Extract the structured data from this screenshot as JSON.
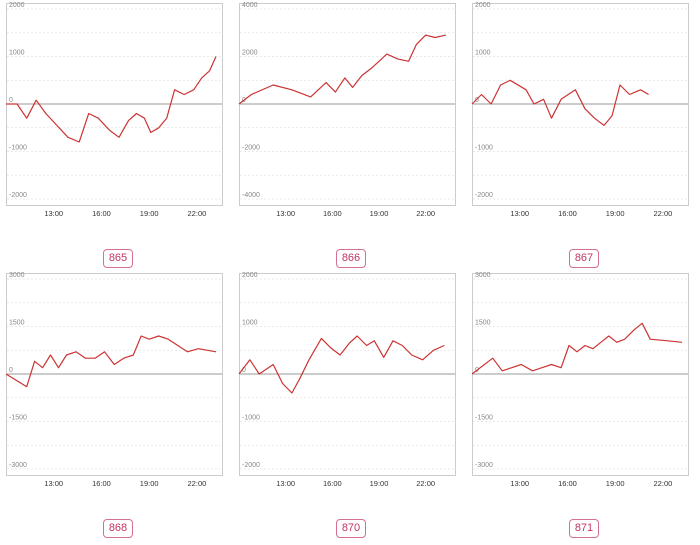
{
  "colors": {
    "line": "#cc3333",
    "grid": "#e2e2e2",
    "zero": "#999999",
    "frame": "#cccccc",
    "badge": "#d6708f"
  },
  "chart_data": [
    {
      "type": "line",
      "id": "865",
      "ylim": [
        -2000,
        2000
      ],
      "yticks": [
        2000,
        1000,
        0,
        -1000,
        -2000
      ],
      "xlim": [
        10,
        23.2
      ],
      "xticks": [
        13,
        16,
        19,
        22
      ],
      "xtick_labels": [
        "13:00",
        "16:00",
        "19:00",
        "22:00"
      ],
      "x": [
        10,
        10.7,
        11.3,
        11.9,
        12.5,
        13.2,
        13.9,
        14.6,
        15.2,
        15.8,
        16.5,
        17.1,
        17.7,
        18.2,
        18.7,
        19.1,
        19.6,
        20.1,
        20.6,
        21.2,
        21.8,
        22.3,
        22.8,
        23.2
      ],
      "values": [
        0,
        0,
        -300,
        80,
        -200,
        -450,
        -700,
        -800,
        -200,
        -300,
        -550,
        -700,
        -350,
        -200,
        -300,
        -600,
        -500,
        -300,
        300,
        200,
        300,
        550,
        700,
        1000
      ]
    },
    {
      "type": "line",
      "id": "866",
      "ylim": [
        -4000,
        4000
      ],
      "yticks": [
        4000,
        2000,
        0,
        -2000,
        -4000
      ],
      "xlim": [
        10,
        23.5
      ],
      "xticks": [
        13,
        16,
        19,
        22
      ],
      "xtick_labels": [
        "13:00",
        "16:00",
        "19:00",
        "22:00"
      ],
      "x": [
        10,
        10.8,
        12.2,
        13.4,
        14.6,
        15.6,
        16.2,
        16.8,
        17.3,
        17.9,
        18.5,
        19,
        19.5,
        20.2,
        20.9,
        21.4,
        22,
        22.6,
        23.3
      ],
      "values": [
        0,
        400,
        800,
        600,
        300,
        900,
        500,
        1100,
        700,
        1200,
        1500,
        1800,
        2100,
        1900,
        1800,
        2500,
        2900,
        2800,
        2900
      ]
    },
    {
      "type": "line",
      "id": "867",
      "ylim": [
        -2000,
        2000
      ],
      "yticks": [
        2000,
        1000,
        0,
        -1000,
        -2000
      ],
      "xlim": [
        10,
        23.2
      ],
      "xticks": [
        13,
        16,
        19,
        22
      ],
      "xtick_labels": [
        "13:00",
        "16:00",
        "19:00",
        "22:00"
      ],
      "x": [
        10,
        10.6,
        11.2,
        11.8,
        12.4,
        13.4,
        13.9,
        14.5,
        15,
        15.6,
        16.5,
        17.1,
        17.7,
        18.3,
        18.8,
        19.3,
        19.9,
        20.6,
        21.1
      ],
      "values": [
        0,
        200,
        0,
        400,
        500,
        300,
        0,
        100,
        -300,
        100,
        300,
        -100,
        -300,
        -450,
        -250,
        400,
        200,
        300,
        200
      ]
    },
    {
      "type": "line",
      "id": "868",
      "ylim": [
        -3000,
        3000
      ],
      "yticks": [
        3000,
        1500,
        0,
        -1500,
        -3000
      ],
      "xlim": [
        10,
        23.2
      ],
      "xticks": [
        13,
        16,
        19,
        22
      ],
      "xtick_labels": [
        "13:00",
        "16:00",
        "19:00",
        "22:00"
      ],
      "x": [
        10,
        11.3,
        11.8,
        12.3,
        12.8,
        13.3,
        13.8,
        14.4,
        15,
        15.6,
        16.2,
        16.8,
        17.4,
        18,
        18.5,
        19,
        19.6,
        20.2,
        20.8,
        21.4,
        22.1,
        23.2
      ],
      "values": [
        0,
        -400,
        400,
        200,
        600,
        200,
        600,
        700,
        500,
        500,
        700,
        300,
        500,
        600,
        1200,
        1100,
        1200,
        1100,
        900,
        700,
        800,
        700
      ]
    },
    {
      "type": "line",
      "id": "870",
      "ylim": [
        -2000,
        2000
      ],
      "yticks": [
        2000,
        1000,
        0,
        -1000,
        -2000
      ],
      "xlim": [
        10,
        23.5
      ],
      "xticks": [
        13,
        16,
        19,
        22
      ],
      "xtick_labels": [
        "13:00",
        "16:00",
        "19:00",
        "22:00"
      ],
      "x": [
        10,
        10.7,
        11.3,
        12.2,
        12.8,
        13.4,
        13.9,
        14.5,
        15.3,
        15.9,
        16.5,
        17.1,
        17.6,
        18.2,
        18.7,
        19.3,
        19.9,
        20.5,
        21.1,
        21.8,
        22.5,
        23.2
      ],
      "values": [
        0,
        300,
        0,
        200,
        -200,
        -400,
        -100,
        300,
        750,
        550,
        400,
        650,
        800,
        600,
        700,
        350,
        700,
        600,
        400,
        300,
        500,
        600
      ]
    },
    {
      "type": "line",
      "id": "871",
      "ylim": [
        -3000,
        3000
      ],
      "yticks": [
        3000,
        1500,
        0,
        -1500,
        -3000
      ],
      "xlim": [
        10,
        23.2
      ],
      "xticks": [
        13,
        16,
        19,
        22
      ],
      "xtick_labels": [
        "13:00",
        "16:00",
        "19:00",
        "22:00"
      ],
      "x": [
        10,
        11.3,
        11.9,
        12.5,
        13.1,
        13.8,
        14.4,
        15,
        15.6,
        16.1,
        16.6,
        17.1,
        17.6,
        18.1,
        18.6,
        19.1,
        19.6,
        20.2,
        20.7,
        21.2,
        22.3,
        23.2
      ],
      "values": [
        0,
        500,
        100,
        200,
        300,
        100,
        200,
        300,
        200,
        900,
        700,
        900,
        800,
        1000,
        1200,
        1000,
        1100,
        1400,
        1600,
        1100,
        1050,
        1000
      ]
    }
  ]
}
